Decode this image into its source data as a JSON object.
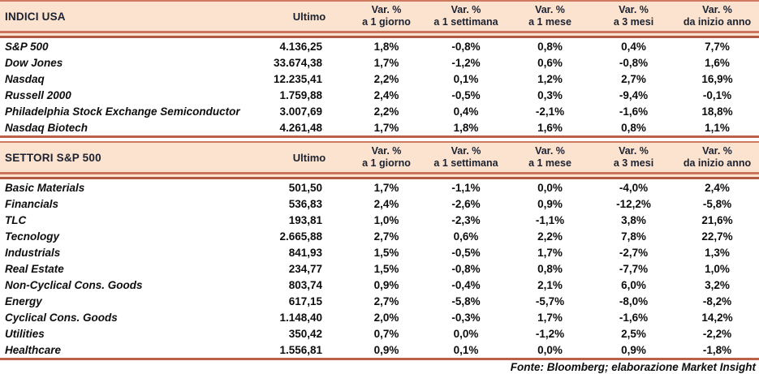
{
  "colors": {
    "band_background": "#fce3cf",
    "rule_light": "#cb755c",
    "rule_dark": "#b25b44",
    "header_text": "#1b2130",
    "body_text": "#0d0d0d"
  },
  "columns": {
    "ultimo": "Ultimo",
    "pct_top": "Var. %",
    "pct_periods": [
      "a 1 giorno",
      "a 1 settimana",
      "a 1 mese",
      "a 3 mesi",
      "da inizio anno"
    ]
  },
  "tables": [
    {
      "title": "INDICI USA",
      "rows": [
        {
          "name": "S&P 500",
          "ultimo": "4.136,25",
          "pct": [
            "1,8%",
            "-0,8%",
            "0,8%",
            "0,4%",
            "7,7%"
          ]
        },
        {
          "name": "Dow Jones",
          "ultimo": "33.674,38",
          "pct": [
            "1,7%",
            "-1,2%",
            "0,6%",
            "-0,8%",
            "1,6%"
          ]
        },
        {
          "name": "Nasdaq",
          "ultimo": "12.235,41",
          "pct": [
            "2,2%",
            "0,1%",
            "1,2%",
            "2,7%",
            "16,9%"
          ]
        },
        {
          "name": "Russell 2000",
          "ultimo": "1.759,88",
          "pct": [
            "2,4%",
            "-0,5%",
            "0,3%",
            "-9,4%",
            "-0,1%"
          ]
        },
        {
          "name": "Philadelphia Stock Exchange Semiconductor",
          "ultimo": "3.007,69",
          "pct": [
            "2,2%",
            "0,4%",
            "-2,1%",
            "-1,6%",
            "18,8%"
          ]
        },
        {
          "name": "Nasdaq Biotech",
          "ultimo": "4.261,48",
          "pct": [
            "1,7%",
            "1,8%",
            "1,6%",
            "0,8%",
            "1,1%"
          ]
        }
      ]
    },
    {
      "title": "SETTORI S&P 500",
      "rows": [
        {
          "name": "Basic Materials",
          "ultimo": "501,50",
          "pct": [
            "1,7%",
            "-1,1%",
            "0,0%",
            "-4,0%",
            "2,4%"
          ]
        },
        {
          "name": "Financials",
          "ultimo": "536,83",
          "pct": [
            "2,4%",
            "-2,6%",
            "0,9%",
            "-12,2%",
            "-5,8%"
          ]
        },
        {
          "name": "TLC",
          "ultimo": "193,81",
          "pct": [
            "1,0%",
            "-2,3%",
            "-1,1%",
            "3,8%",
            "21,6%"
          ]
        },
        {
          "name": "Tecnology",
          "ultimo": "2.665,88",
          "pct": [
            "2,7%",
            "0,6%",
            "2,2%",
            "7,8%",
            "22,7%"
          ]
        },
        {
          "name": "Industrials",
          "ultimo": "841,93",
          "pct": [
            "1,5%",
            "-0,5%",
            "1,7%",
            "-2,7%",
            "1,3%"
          ]
        },
        {
          "name": "Real Estate",
          "ultimo": "234,77",
          "pct": [
            "1,5%",
            "-0,8%",
            "0,8%",
            "-7,7%",
            "1,0%"
          ]
        },
        {
          "name": "Non-Cyclical Cons. Goods",
          "ultimo": "803,74",
          "pct": [
            "0,9%",
            "-0,4%",
            "2,1%",
            "6,0%",
            "3,2%"
          ]
        },
        {
          "name": "Energy",
          "ultimo": "617,15",
          "pct": [
            "2,7%",
            "-5,8%",
            "-5,7%",
            "-8,0%",
            "-8,2%"
          ]
        },
        {
          "name": "Cyclical Cons. Goods",
          "ultimo": "1.148,40",
          "pct": [
            "2,0%",
            "-0,3%",
            "1,7%",
            "-1,6%",
            "14,2%"
          ]
        },
        {
          "name": "Utilities",
          "ultimo": "350,42",
          "pct": [
            "0,7%",
            "0,0%",
            "-1,2%",
            "2,5%",
            "-2,2%"
          ]
        },
        {
          "name": "Healthcare",
          "ultimo": "1.556,81",
          "pct": [
            "0,9%",
            "0,1%",
            "0,0%",
            "0,9%",
            "-1,8%"
          ]
        }
      ]
    }
  ],
  "footer": "Fonte: Bloomberg; elaborazione Market Insight"
}
